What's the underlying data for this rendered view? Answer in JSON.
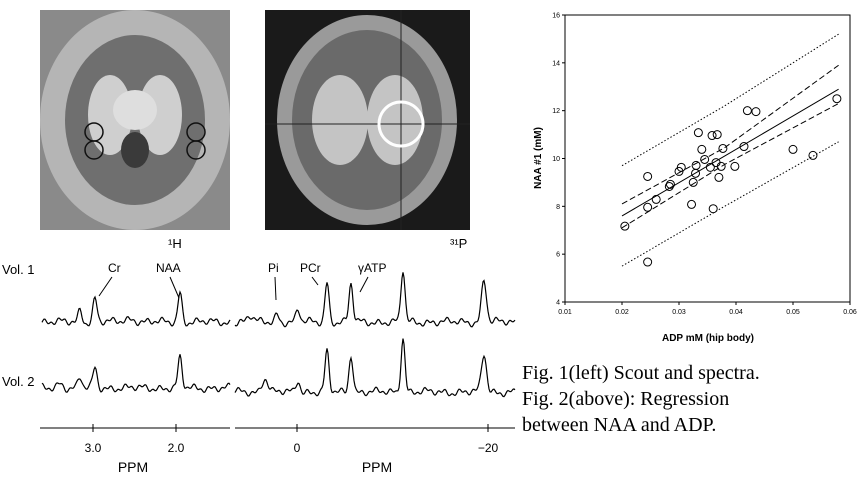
{
  "chart_data": {
    "type": "scatter",
    "xlabel": "ADP mM (hip body)",
    "ylabel": "NAA #1 (mM)",
    "x": [
      0.0205,
      0.0245,
      0.0245,
      0.0245,
      0.026,
      0.0283,
      0.0285,
      0.03,
      0.0304,
      0.0322,
      0.0325,
      0.0329,
      0.033,
      0.0334,
      0.034,
      0.0345,
      0.0355,
      0.036,
      0.0358,
      0.0367,
      0.0365,
      0.037,
      0.0374,
      0.0377,
      0.0398,
      0.0414,
      0.042,
      0.0435,
      0.05,
      0.0535,
      0.0577
    ],
    "values": [
      7.17,
      5.67,
      9.25,
      7.96,
      8.29,
      8.83,
      8.92,
      9.46,
      9.63,
      8.08,
      9.0,
      9.38,
      9.71,
      11.08,
      10.38,
      9.96,
      9.63,
      7.9,
      10.96,
      11.0,
      9.83,
      9.21,
      9.67,
      10.42,
      9.67,
      10.5,
      12.0,
      11.96,
      10.38,
      10.13,
      12.5
    ],
    "fit_lines": [
      {
        "style": "solid",
        "x": [
          0.02,
          0.038,
          0.058
        ],
        "values": [
          7.6,
          10.1,
          12.9
        ]
      },
      {
        "style": "dashed",
        "x": [
          0.02,
          0.038,
          0.058
        ],
        "values": [
          8.1,
          10.45,
          13.9
        ]
      },
      {
        "style": "dashed",
        "x": [
          0.02,
          0.038,
          0.058
        ],
        "values": [
          7.1,
          9.75,
          12.3
        ]
      },
      {
        "style": "dotted",
        "x": [
          0.02,
          0.038,
          0.058
        ],
        "values": [
          9.7,
          12.2,
          15.2
        ]
      },
      {
        "style": "dotted",
        "x": [
          0.02,
          0.038,
          0.058
        ],
        "values": [
          5.5,
          8.0,
          10.7
        ]
      }
    ],
    "xlim": [
      0.01,
      0.06
    ],
    "xticks": [
      0.01,
      0.02,
      0.03,
      0.04,
      0.05,
      0.06
    ],
    "ylim": [
      4,
      16
    ],
    "yticks": [
      4,
      6,
      8,
      10,
      12,
      14,
      16
    ],
    "color": "#000000"
  },
  "figure": {
    "image_labels": [
      "¹H",
      "³¹P"
    ],
    "rows": [
      "Vol. 1",
      "Vol. 2"
    ],
    "peaks_h": [
      "Cr",
      "NAA"
    ],
    "peaks_p": [
      "Pi",
      "PCr",
      "γATP"
    ],
    "axis_h": {
      "ticks": [
        "3.0",
        "2.0"
      ],
      "label": "PPM"
    },
    "axis_p": {
      "ticks": [
        "0",
        "−20"
      ],
      "label": "PPM"
    }
  },
  "caption": [
    "Fig. 1(left) Scout and spectra.",
    "Fig. 2(above): Regression",
    "between NAA and ADP."
  ]
}
